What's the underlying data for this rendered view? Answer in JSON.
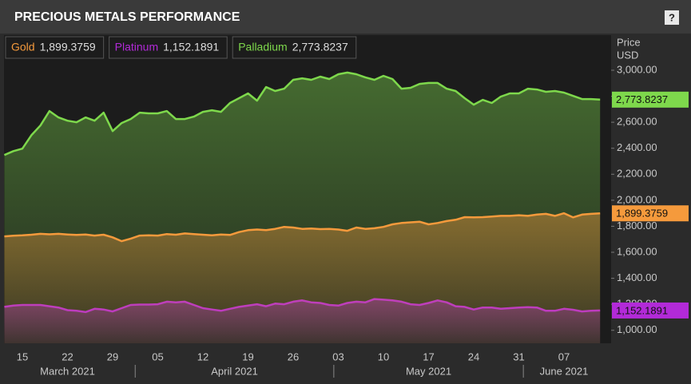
{
  "chart_data": {
    "type": "area",
    "title": "PRECIOUS METALS PERFORMANCE",
    "help": "?",
    "ylabel": [
      "Price",
      "USD"
    ],
    "categories": [
      null,
      null,
      "15",
      null,
      null,
      null,
      null,
      "22",
      null,
      null,
      null,
      null,
      "29",
      null,
      null,
      null,
      null,
      "05",
      null,
      null,
      null,
      null,
      "12",
      null,
      null,
      null,
      null,
      "19",
      null,
      null,
      null,
      null,
      "26",
      null,
      null,
      null,
      null,
      "03",
      null,
      null,
      null,
      null,
      "10",
      null,
      null,
      null,
      null,
      "17",
      null,
      null,
      null,
      null,
      "24",
      null,
      null,
      null,
      null,
      "31",
      null,
      null,
      null,
      null,
      "07",
      null,
      null,
      null,
      null
    ],
    "x_groups": [
      "March 2021",
      "April 2021",
      "May 2021",
      "June 2021"
    ],
    "x_group_starts": [
      0,
      15,
      37,
      58
    ],
    "series": [
      {
        "name": "Gold",
        "color": "#f59a3c",
        "values": [
          1722,
          1727,
          1730,
          1735,
          1742,
          1738,
          1742,
          1737,
          1733,
          1736,
          1728,
          1735,
          1715,
          1685,
          1705,
          1728,
          1730,
          1728,
          1740,
          1735,
          1745,
          1740,
          1735,
          1730,
          1737,
          1733,
          1755,
          1770,
          1775,
          1770,
          1780,
          1795,
          1790,
          1780,
          1782,
          1778,
          1780,
          1775,
          1765,
          1790,
          1780,
          1785,
          1795,
          1815,
          1825,
          1830,
          1835,
          1815,
          1825,
          1840,
          1850,
          1870,
          1868,
          1870,
          1875,
          1880,
          1880,
          1885,
          1880,
          1890,
          1895,
          1880,
          1900,
          1868,
          1890,
          1895,
          1899.3759
        ],
        "value_labels": [
          null,
          null,
          null,
          null,
          null,
          null,
          null,
          null,
          null,
          null,
          null,
          null,
          null,
          null,
          null,
          null,
          null,
          null,
          null,
          null,
          null,
          null,
          null,
          null,
          null,
          null,
          null,
          null,
          null,
          null,
          null,
          null,
          null,
          null,
          null,
          null,
          null,
          null,
          null,
          null,
          null,
          null,
          null,
          null,
          null,
          null,
          null,
          null,
          null,
          null,
          null,
          null,
          null,
          null,
          null,
          null,
          null,
          null,
          null,
          null,
          null,
          null,
          null,
          null,
          null,
          null,
          "1,899.3759"
        ]
      },
      {
        "name": "Platinum",
        "color": "#b22ad8",
        "values": [
          1180,
          1190,
          1195,
          1195,
          1195,
          1185,
          1175,
          1155,
          1150,
          1140,
          1165,
          1160,
          1145,
          1170,
          1195,
          1198,
          1198,
          1200,
          1220,
          1215,
          1220,
          1195,
          1170,
          1160,
          1150,
          1165,
          1180,
          1190,
          1200,
          1185,
          1205,
          1200,
          1220,
          1230,
          1215,
          1210,
          1195,
          1190,
          1210,
          1220,
          1215,
          1240,
          1235,
          1230,
          1220,
          1200,
          1195,
          1210,
          1230,
          1215,
          1185,
          1180,
          1160,
          1175,
          1175,
          1165,
          1170,
          1175,
          1178,
          1175,
          1150,
          1150,
          1165,
          1158,
          1145,
          1150,
          1152.1891
        ],
        "value_labels": [
          null,
          null,
          null,
          null,
          null,
          null,
          null,
          null,
          null,
          null,
          null,
          null,
          null,
          null,
          null,
          null,
          null,
          null,
          null,
          null,
          null,
          null,
          null,
          null,
          null,
          null,
          null,
          null,
          null,
          null,
          null,
          null,
          null,
          null,
          null,
          null,
          null,
          null,
          null,
          null,
          null,
          null,
          null,
          null,
          null,
          null,
          null,
          null,
          null,
          null,
          null,
          null,
          null,
          null,
          null,
          null,
          null,
          null,
          null,
          null,
          null,
          null,
          null,
          null,
          null,
          null,
          "1,152.1891"
        ]
      },
      {
        "name": "Palladium",
        "color": "#7ed84c",
        "values": [
          2348,
          2378,
          2397,
          2500,
          2575,
          2686,
          2637,
          2612,
          2600,
          2637,
          2612,
          2674,
          2532,
          2594,
          2625,
          2674,
          2668,
          2668,
          2686,
          2625,
          2625,
          2643,
          2680,
          2692,
          2680,
          2748,
          2785,
          2822,
          2766,
          2871,
          2840,
          2858,
          2926,
          2938,
          2926,
          2951,
          2932,
          2969,
          2982,
          2969,
          2945,
          2926,
          2957,
          2932,
          2858,
          2865,
          2895,
          2902,
          2902,
          2858,
          2840,
          2785,
          2735,
          2772,
          2748,
          2797,
          2822,
          2822,
          2858,
          2852,
          2834,
          2840,
          2828,
          2803,
          2778,
          2778,
          2773.8237
        ],
        "value_labels": [
          null,
          null,
          null,
          null,
          null,
          null,
          null,
          null,
          null,
          null,
          null,
          null,
          null,
          null,
          null,
          null,
          null,
          null,
          null,
          null,
          null,
          null,
          null,
          null,
          null,
          null,
          null,
          null,
          null,
          null,
          null,
          null,
          null,
          null,
          null,
          null,
          null,
          null,
          null,
          null,
          null,
          null,
          null,
          null,
          null,
          null,
          null,
          null,
          null,
          null,
          null,
          null,
          null,
          null,
          null,
          null,
          null,
          null,
          null,
          null,
          null,
          null,
          null,
          null,
          null,
          null,
          "2,773.8237"
        ]
      }
    ],
    "ylim": [
      900,
      3270
    ],
    "yticks": [
      {
        "value": 1000,
        "label": "1,000.00"
      },
      {
        "value": 1200,
        "label": "1,200.00"
      },
      {
        "value": 1400,
        "label": "1,400.00"
      },
      {
        "value": 1600,
        "label": "1,600.00"
      },
      {
        "value": 1800,
        "label": "1,800.00"
      },
      {
        "value": 2000,
        "label": "2,000.00"
      },
      {
        "value": 2200,
        "label": "2,200.00"
      },
      {
        "value": 2400,
        "label": "2,400.00"
      },
      {
        "value": 2600,
        "label": "2,600.00"
      },
      {
        "value": 2800,
        "label": "2,800.00"
      },
      {
        "value": 3000,
        "label": "3,000.00"
      }
    ],
    "grid": false
  }
}
